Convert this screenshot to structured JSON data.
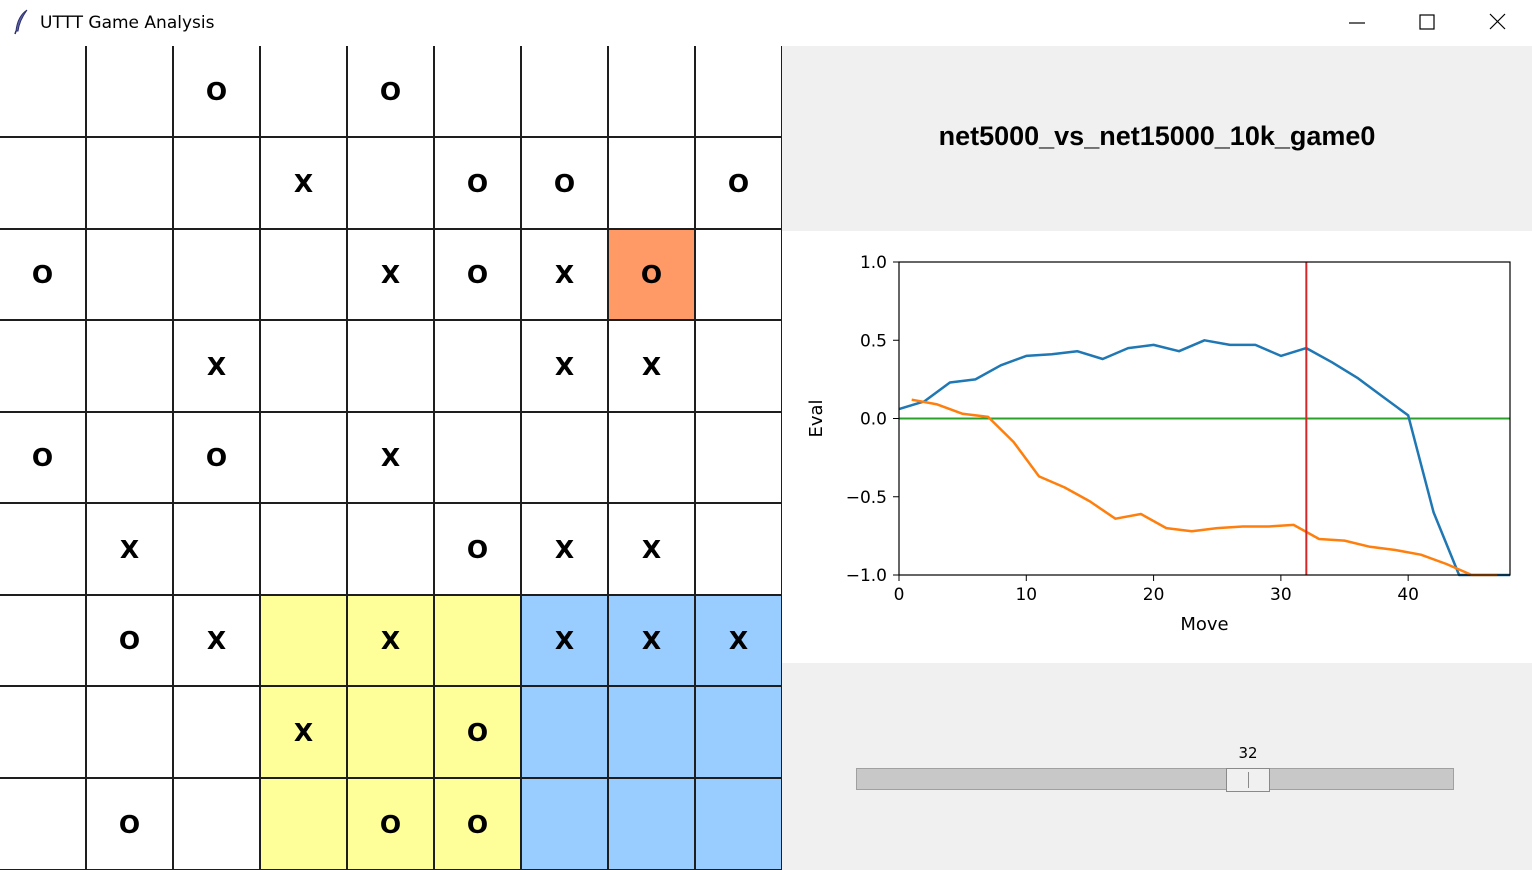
{
  "window": {
    "title": "UTTT Game Analysis",
    "controls": [
      "minimize-icon",
      "maximize-icon",
      "close-icon"
    ]
  },
  "board": {
    "grid": [
      [
        "",
        "",
        "O",
        "",
        "O",
        "",
        "",
        "",
        ""
      ],
      [
        "",
        "",
        "",
        "X",
        "",
        "O",
        "O",
        "",
        "O"
      ],
      [
        "O",
        "",
        "",
        "",
        "X",
        "O",
        "X",
        "O",
        ""
      ],
      [
        "",
        "",
        "X",
        "",
        "",
        "",
        "X",
        "X",
        ""
      ],
      [
        "O",
        "",
        "O",
        "",
        "X",
        "",
        "",
        "",
        ""
      ],
      [
        "",
        "X",
        "",
        "",
        "",
        "O",
        "X",
        "X",
        ""
      ],
      [
        "",
        "O",
        "X",
        "",
        "X",
        "",
        "X",
        "X",
        "X"
      ],
      [
        "",
        "",
        "",
        "X",
        "",
        "O",
        "",
        "",
        ""
      ],
      [
        "",
        "O",
        "",
        "",
        "O",
        "O",
        "",
        "",
        ""
      ]
    ],
    "subboard_fills": {
      "7": "#ffff99",
      "8": "#99ccff"
    },
    "last_move": {
      "row": 2,
      "col": 7,
      "color": "#ff9966"
    },
    "cell_color": "#ffffff"
  },
  "heading": "net5000_vs_net15000_10k_game0",
  "slider": {
    "value": "32",
    "min": 0,
    "max": 48
  },
  "chart_data": {
    "type": "line",
    "xlabel": "Move",
    "ylabel": "Eval",
    "xlim": [
      0,
      48
    ],
    "ylim": [
      -1.0,
      1.0
    ],
    "xticks": [
      "0",
      "10",
      "20",
      "30",
      "40"
    ],
    "yticks": [
      "1.0",
      "0.5",
      "0.0",
      "−0.5",
      "−1.0"
    ],
    "series": [
      {
        "color": "#1f77b4",
        "x": [
          0,
          2,
          4,
          6,
          8,
          10,
          12,
          14,
          16,
          18,
          20,
          22,
          24,
          26,
          28,
          30,
          32,
          34,
          36,
          38,
          40,
          42,
          44,
          46,
          48
        ],
        "y": [
          0.06,
          0.11,
          0.23,
          0.25,
          0.34,
          0.4,
          0.41,
          0.43,
          0.38,
          0.45,
          0.47,
          0.43,
          0.5,
          0.47,
          0.47,
          0.4,
          0.45,
          0.36,
          0.26,
          0.14,
          0.02,
          -0.6,
          -1.0,
          -1.0,
          -1.0
        ]
      },
      {
        "color": "#ff7f0e",
        "x": [
          1,
          3,
          5,
          7,
          9,
          11,
          13,
          15,
          17,
          19,
          21,
          23,
          25,
          27,
          29,
          31,
          33,
          35,
          37,
          39,
          41,
          43,
          45,
          47
        ],
        "y": [
          0.12,
          0.09,
          0.03,
          0.01,
          -0.15,
          -0.37,
          -0.44,
          -0.53,
          -0.64,
          -0.61,
          -0.7,
          -0.72,
          -0.7,
          -0.69,
          -0.69,
          -0.68,
          -0.77,
          -0.78,
          -0.82,
          -0.84,
          -0.87,
          -0.93,
          -1.0,
          -1.0
        ]
      }
    ],
    "hline": {
      "y": 0.0,
      "color": "#2ca02c"
    },
    "vline": {
      "x": 32,
      "color": "#d62728"
    }
  }
}
